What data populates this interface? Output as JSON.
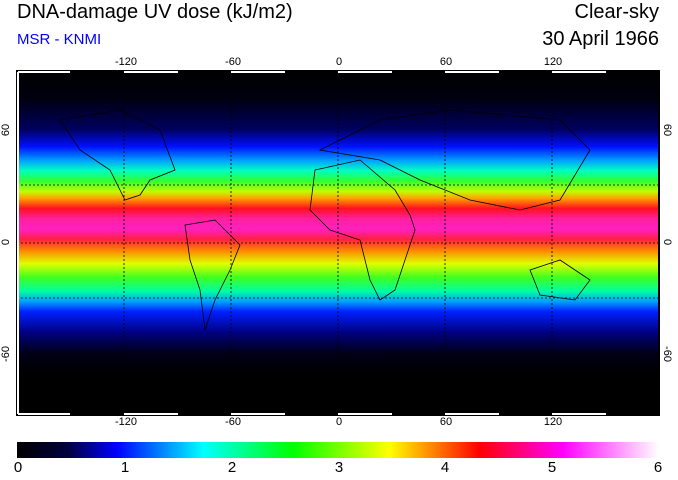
{
  "header": {
    "title": "DNA-damage UV dose (kJ/m2)",
    "source": "MSR - KNMI",
    "condition": "Clear-sky",
    "date": "30 April 1966"
  },
  "map": {
    "lon_ticks": [
      "-120",
      "-60",
      "0",
      "60",
      "120"
    ],
    "lat_ticks": [
      "60",
      "0",
      "-60"
    ],
    "lon_values": [
      -120,
      -60,
      0,
      60,
      120
    ],
    "lat_values": [
      60,
      0,
      -60
    ],
    "gridlines_lat": [
      30,
      0,
      -30
    ]
  },
  "colorbar": {
    "labels": [
      "0",
      "1",
      "2",
      "3",
      "4",
      "5",
      "6"
    ],
    "range": [
      0,
      6
    ],
    "colors": [
      "#000000",
      "#0000ff",
      "#00ffff",
      "#00ff00",
      "#ffff00",
      "#ff0000",
      "#ff00ff",
      "#ffffff"
    ]
  }
}
